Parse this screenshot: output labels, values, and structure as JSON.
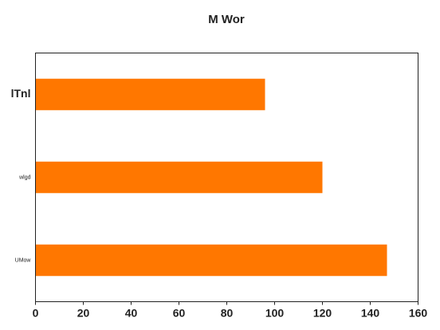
{
  "chart_data": {
    "type": "bar",
    "orientation": "horizontal",
    "title": "M Wor",
    "categories": [
      "lTnl",
      "wlgd",
      "UMow"
    ],
    "values": [
      96,
      120,
      147
    ],
    "xlim": [
      0,
      160
    ],
    "xticks": [
      0,
      20,
      40,
      60,
      80,
      100,
      120,
      140,
      160
    ],
    "xlabel": "",
    "ylabel": "",
    "grid": false,
    "legend": "none",
    "bar_color": "#ff7700"
  }
}
